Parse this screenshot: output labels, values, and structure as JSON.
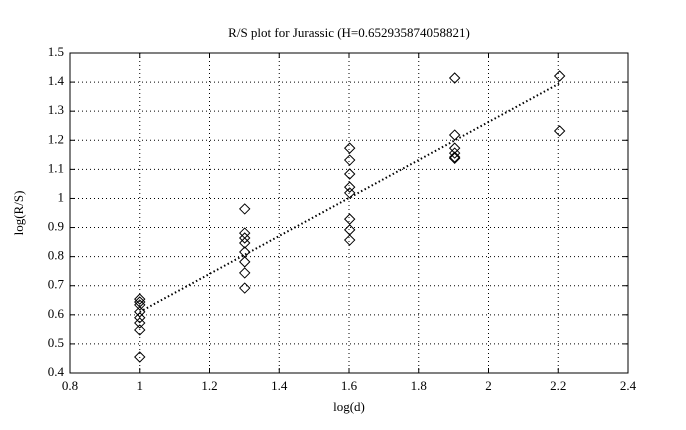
{
  "chart_data": {
    "type": "scatter",
    "title": "R/S plot for Jurassic (H=0.652935874058821)",
    "x_label": "log(d)",
    "y_label": "log(R/S)",
    "points": {
      "marker": "diamond",
      "color": "#000000",
      "x": [
        1,
        1,
        1,
        1,
        1,
        1,
        1,
        1,
        1.301,
        1.301,
        1.301,
        1.301,
        1.301,
        1.301,
        1.301,
        1.301,
        1.602,
        1.602,
        1.602,
        1.602,
        1.602,
        1.602,
        1.602,
        1.602,
        1.903,
        1.903,
        1.903,
        1.903,
        1.903,
        1.903,
        2.204,
        2.204
      ],
      "y": [
        0.654,
        0.644,
        0.634,
        0.61,
        0.59,
        0.572,
        0.548,
        0.455,
        0.964,
        0.881,
        0.864,
        0.847,
        0.816,
        0.782,
        0.744,
        0.692,
        1.173,
        1.132,
        1.084,
        1.039,
        1.019,
        0.929,
        0.892,
        0.857,
        1.414,
        1.218,
        1.173,
        1.156,
        1.142,
        1.138,
        1.421,
        1.232
      ]
    },
    "fit_line": {
      "color": "#000000",
      "dash": "dotted",
      "x": [
        1,
        2.204
      ],
      "y": [
        0.61,
        1.396
      ]
    },
    "xlim": [
      0.8,
      2.4
    ],
    "xticks": [
      0.8,
      1,
      1.2,
      1.4,
      1.6,
      1.8,
      2,
      2.2,
      2.4
    ],
    "ylim": [
      0.4,
      1.5
    ],
    "yticks": [
      0.4,
      0.5,
      0.6,
      0.7,
      0.8,
      0.9,
      1,
      1.1,
      1.2,
      1.3,
      1.4,
      1.5
    ],
    "grid": true
  }
}
